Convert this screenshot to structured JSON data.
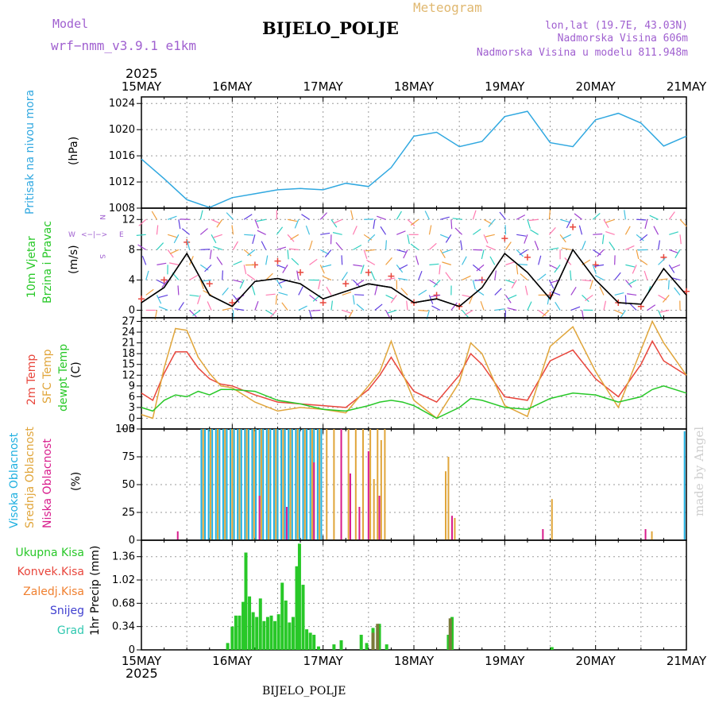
{
  "header": {
    "model_label": "Model",
    "model_name": "wrf−nmm_v3.9.1  e1km",
    "meteogram_label": "Meteogram",
    "station": "BIJELO_POLJE",
    "location": "lon,lat (19.7E, 43.03N)",
    "altitude": "Nadmorska Visina 606m",
    "model_altitude": "Nadmorska Visina u modelu 811.948m",
    "year_top": "2025",
    "year_bottom": "2025",
    "footer_station": "BIJELO_POLJE",
    "watermark": "made by Angel"
  },
  "colors": {
    "pressure": "#30a8e0",
    "wind_speed": "#000000",
    "gust_marker": "#e8463c",
    "t2m": "#e8463c",
    "sfc": "#e0a53a",
    "dew": "#28c828",
    "high_cloud": "#20b0e0",
    "mid_cloud": "#e0a53a",
    "low_cloud": "#d81c8c",
    "total_precip": "#28c828",
    "conv_precip": "#e8463c",
    "strat_precip": "#f08030",
    "snow": "#4040d0",
    "hail": "#30c8b0"
  },
  "chart_data": [
    {
      "type": "line",
      "panel": "pressure",
      "ylabels": [
        "Pritisak na nivou mora",
        "(hPa)"
      ],
      "ylim": [
        1008,
        1025
      ],
      "yticks": [
        "1008",
        "1012",
        "1016",
        "1020",
        "1024"
      ],
      "xticks": [
        "15MAY",
        "16MAY",
        "17MAY",
        "18MAY",
        "19MAY",
        "20MAY",
        "21MAY"
      ],
      "x_days": [
        0,
        0.25,
        0.5,
        0.75,
        1.0,
        1.25,
        1.5,
        1.75,
        2.0,
        2.25,
        2.5,
        2.75,
        3.0,
        3.25,
        3.5,
        3.75,
        4.0,
        4.25,
        4.5,
        4.75,
        5.0,
        5.25,
        5.5,
        5.75,
        6.0
      ],
      "series": [
        {
          "key": "pressure",
          "values": [
            1015.5,
            1012.5,
            1009.3,
            1008.1,
            1009.6,
            1010.2,
            1010.8,
            1011.0,
            1010.8,
            1011.8,
            1011.3,
            1014.2,
            1019.0,
            1019.6,
            1017.4,
            1018.2,
            1022.0,
            1022.8,
            1018.0,
            1017.4,
            1021.5,
            1022.5,
            1021.0,
            1017.5,
            1019.0
          ]
        }
      ]
    },
    {
      "type": "line",
      "panel": "wind",
      "ylabels": [
        "10m Vjetar",
        "Brzina i Pravac",
        "(m/s)"
      ],
      "direction_legend": [
        "W",
        "<−|−>",
        "E",
        "N",
        "S"
      ],
      "ylim": [
        -1,
        13.5
      ],
      "yticks": [
        "0",
        "4",
        "8",
        "12"
      ],
      "x_days": [
        0,
        0.25,
        0.5,
        0.75,
        1.0,
        1.25,
        1.5,
        1.75,
        2.0,
        2.25,
        2.5,
        2.75,
        3.0,
        3.25,
        3.5,
        3.75,
        4.0,
        4.25,
        4.5,
        4.75,
        5.0,
        5.25,
        5.5,
        5.75,
        6.0
      ],
      "series": [
        {
          "key": "wind_speed",
          "values": [
            1.0,
            3.0,
            7.5,
            2.0,
            0.5,
            3.8,
            4.2,
            3.5,
            1.5,
            2.5,
            3.5,
            3.0,
            1.0,
            1.5,
            0.5,
            3.0,
            7.5,
            5.0,
            1.5,
            8.0,
            4.0,
            1.0,
            0.8,
            5.5,
            2.0
          ]
        },
        {
          "key": "gusts",
          "values": [
            1.5,
            4.0,
            9.0,
            3.5,
            1.0,
            6.0,
            6.5,
            5.0,
            1.0,
            3.5,
            5.0,
            4.5,
            1.0,
            2.0,
            0.5,
            4.0,
            9.5,
            7.0,
            2.0,
            11.0,
            6.0,
            1.0,
            0.5,
            7.0,
            2.5
          ]
        }
      ]
    },
    {
      "type": "line",
      "panel": "temperature",
      "ylabels": [
        "2m Temp",
        "SFC Temp",
        "dewpt Temp",
        "(C)"
      ],
      "ylim": [
        -3,
        28
      ],
      "yticks": [
        "−3",
        "0",
        "3",
        "6",
        "9",
        "12",
        "15",
        "18",
        "21",
        "24",
        "27"
      ],
      "x_days": [
        0,
        0.125,
        0.25,
        0.375,
        0.5,
        0.625,
        0.75,
        0.875,
        1.0,
        1.25,
        1.5,
        1.75,
        2.0,
        2.25,
        2.5,
        2.625,
        2.75,
        2.875,
        3.0,
        3.25,
        3.5,
        3.625,
        3.75,
        4.0,
        4.25,
        4.5,
        4.75,
        5.0,
        5.25,
        5.5,
        5.625,
        5.75,
        6.0
      ],
      "series": [
        {
          "key": "t2m",
          "values": [
            7.0,
            5.0,
            12.5,
            18.5,
            18.5,
            14.0,
            11.0,
            9.5,
            9.0,
            6.5,
            4.5,
            4.0,
            3.5,
            3.0,
            8.0,
            12.0,
            17.0,
            12.0,
            7.5,
            4.5,
            12.0,
            18.0,
            15.0,
            6.0,
            5.0,
            16.0,
            19.0,
            11.0,
            6.0,
            15.0,
            21.5,
            16.0,
            12.0
          ]
        },
        {
          "key": "sfc",
          "values": [
            1.0,
            0.0,
            14.0,
            25.0,
            24.5,
            17.0,
            12.5,
            9.0,
            8.5,
            4.5,
            2.0,
            3.0,
            2.5,
            1.5,
            9.0,
            13.0,
            21.5,
            12.5,
            5.0,
            0.0,
            10.0,
            21.0,
            18.0,
            3.5,
            0.5,
            20.0,
            25.5,
            13.0,
            3.0,
            19.0,
            27.0,
            21.0,
            12.0
          ]
        },
        {
          "key": "dew",
          "values": [
            3.0,
            2.0,
            5.0,
            6.5,
            6.0,
            7.5,
            6.5,
            8.0,
            8.0,
            7.5,
            5.0,
            4.0,
            2.5,
            2.0,
            3.5,
            4.5,
            5.0,
            4.5,
            3.5,
            0.0,
            3.0,
            5.5,
            5.0,
            3.0,
            2.5,
            5.5,
            7.0,
            6.5,
            4.5,
            6.0,
            8.0,
            9.0,
            7.0
          ]
        }
      ]
    },
    {
      "type": "bar",
      "panel": "cloud",
      "ylabels": [
        "Visoka Oblacnost",
        "Srednja Oblacnost",
        "Niska Oblacnost",
        "(%)"
      ],
      "ylim": [
        0,
        100
      ],
      "yticks": [
        "0",
        "25",
        "50",
        "75",
        "100"
      ],
      "series": [
        {
          "key": "high",
          "points": [
            [
              0.66,
              100
            ],
            [
              0.7,
              100
            ],
            [
              0.74,
              100
            ],
            [
              0.78,
              100
            ],
            [
              0.82,
              100
            ],
            [
              0.86,
              100
            ],
            [
              0.9,
              100
            ],
            [
              0.94,
              100
            ],
            [
              0.98,
              100
            ],
            [
              1.02,
              100
            ],
            [
              1.06,
              100
            ],
            [
              1.1,
              100
            ],
            [
              1.14,
              100
            ],
            [
              1.18,
              100
            ],
            [
              1.22,
              100
            ],
            [
              1.26,
              100
            ],
            [
              1.3,
              100
            ],
            [
              1.34,
              100
            ],
            [
              1.38,
              100
            ],
            [
              1.42,
              100
            ],
            [
              1.46,
              100
            ],
            [
              1.5,
              100
            ],
            [
              1.54,
              100
            ],
            [
              1.58,
              100
            ],
            [
              1.62,
              100
            ],
            [
              1.66,
              100
            ],
            [
              1.7,
              100
            ],
            [
              1.74,
              100
            ],
            [
              1.78,
              100
            ],
            [
              1.82,
              100
            ],
            [
              1.86,
              100
            ],
            [
              1.9,
              100
            ],
            [
              1.94,
              100
            ],
            [
              1.98,
              100
            ],
            [
              5.98,
              98
            ]
          ]
        },
        {
          "key": "mid",
          "points": [
            [
              0.68,
              100
            ],
            [
              0.76,
              100
            ],
            [
              0.84,
              100
            ],
            [
              0.92,
              100
            ],
            [
              1.0,
              100
            ],
            [
              1.08,
              100
            ],
            [
              1.16,
              100
            ],
            [
              1.24,
              100
            ],
            [
              1.32,
              100
            ],
            [
              1.4,
              100
            ],
            [
              1.48,
              100
            ],
            [
              1.56,
              100
            ],
            [
              1.64,
              100
            ],
            [
              1.72,
              100
            ],
            [
              1.8,
              100
            ],
            [
              1.88,
              100
            ],
            [
              1.96,
              100
            ],
            [
              2.04,
              100
            ],
            [
              2.12,
              100
            ],
            [
              2.2,
              100
            ],
            [
              2.28,
              100
            ],
            [
              2.36,
              100
            ],
            [
              2.44,
              100
            ],
            [
              2.52,
              100
            ],
            [
              2.56,
              55
            ],
            [
              2.6,
              100
            ],
            [
              2.64,
              90
            ],
            [
              2.68,
              100
            ],
            [
              3.35,
              62
            ],
            [
              3.38,
              75
            ],
            [
              3.45,
              20
            ],
            [
              4.52,
              37
            ],
            [
              5.62,
              8
            ]
          ]
        },
        {
          "key": "low",
          "points": [
            [
              0.4,
              8
            ],
            [
              1.3,
              40
            ],
            [
              1.6,
              30
            ],
            [
              1.9,
              70
            ],
            [
              2.2,
              100
            ],
            [
              2.3,
              60
            ],
            [
              2.4,
              30
            ],
            [
              2.5,
              80
            ],
            [
              2.62,
              40
            ],
            [
              3.42,
              22
            ],
            [
              4.42,
              10
            ],
            [
              5.55,
              10
            ]
          ]
        }
      ]
    },
    {
      "type": "bar",
      "panel": "precip",
      "ylabels": [
        "Ukupna Kisa",
        "Konvek.Kisa",
        "Zaledj.Kisa",
        "Snijeg",
        "Grad",
        "1hr Precip (mm)"
      ],
      "ylim": [
        0,
        1.6
      ],
      "yticks": [
        "0",
        "0.34",
        "0.68",
        "1.02",
        "1.36"
      ],
      "series": [
        {
          "key": "total",
          "points": [
            [
              0.95,
              0.1
            ],
            [
              1.0,
              0.34
            ],
            [
              1.04,
              0.5
            ],
            [
              1.08,
              0.5
            ],
            [
              1.12,
              0.7
            ],
            [
              1.15,
              1.42
            ],
            [
              1.19,
              0.78
            ],
            [
              1.23,
              0.55
            ],
            [
              1.27,
              0.48
            ],
            [
              1.31,
              0.75
            ],
            [
              1.35,
              0.42
            ],
            [
              1.39,
              0.48
            ],
            [
              1.43,
              0.5
            ],
            [
              1.47,
              0.42
            ],
            [
              1.51,
              0.52
            ],
            [
              1.55,
              0.98
            ],
            [
              1.59,
              0.72
            ],
            [
              1.63,
              0.4
            ],
            [
              1.67,
              0.48
            ],
            [
              1.71,
              1.22
            ],
            [
              1.74,
              1.55
            ],
            [
              1.78,
              0.95
            ],
            [
              1.82,
              0.3
            ],
            [
              1.86,
              0.25
            ],
            [
              1.9,
              0.22
            ],
            [
              1.95,
              0.05
            ],
            [
              2.12,
              0.08
            ],
            [
              2.2,
              0.14
            ],
            [
              2.42,
              0.22
            ],
            [
              2.48,
              0.1
            ],
            [
              2.55,
              0.32
            ],
            [
              2.62,
              0.38
            ],
            [
              2.7,
              0.08
            ],
            [
              3.38,
              0.22
            ],
            [
              3.42,
              0.48
            ],
            [
              4.52,
              0.04
            ]
          ]
        },
        {
          "key": "conv",
          "points": [
            [
              2.55,
              0.25
            ],
            [
              2.6,
              0.38
            ],
            [
              3.4,
              0.46
            ]
          ]
        }
      ]
    }
  ]
}
